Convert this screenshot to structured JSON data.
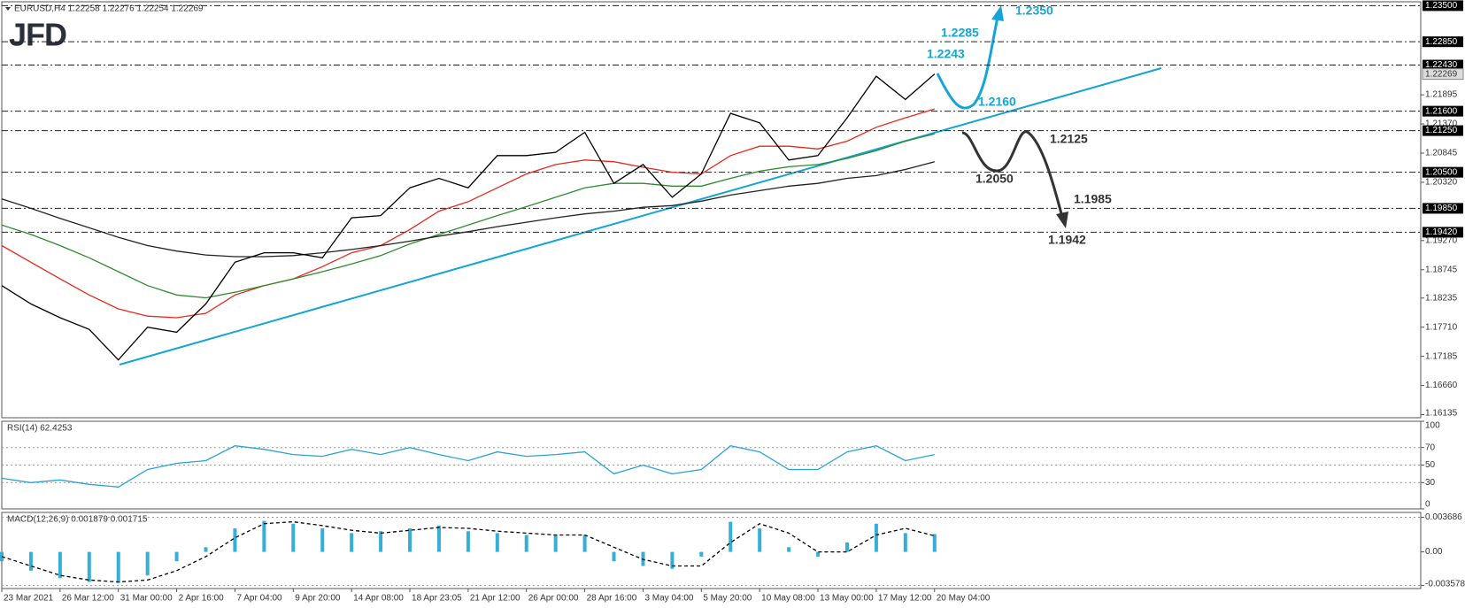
{
  "logo": "JFD",
  "chart_data": [
    {
      "type": "line",
      "title": "EURUSD,H4 1.22258 1.22276 1.22254 1.22269",
      "categories": [
        "23 Mar 2021",
        null,
        "26 Mar 12:00",
        null,
        "31 Mar 00:00",
        null,
        "2 Apr 16:00",
        null,
        "7 Apr 04:00",
        null,
        "9 Apr 20:00",
        null,
        "14 Apr 08:00",
        null,
        "18 Apr 23:05",
        null,
        "21 Apr 12:00",
        null,
        "26 Apr 00:00",
        null,
        "28 Apr 16:00",
        null,
        "3 May 04:00",
        null,
        "5 May 20:00",
        null,
        "10 May 08:00",
        null,
        "13 May 00:00",
        null,
        "17 May 12:00",
        null,
        "20 May 04:00"
      ],
      "series": [
        {
          "color": "#e8281e",
          "values": [
            1.1918,
            1.1888,
            1.1858,
            1.1829,
            1.1804,
            1.1791,
            1.1788,
            1.1796,
            1.1829,
            1.1846,
            1.1858,
            1.188,
            1.1905,
            1.1918,
            1.1947,
            1.198,
            1.1997,
            1.2022,
            1.2047,
            1.2064,
            1.2072,
            1.2069,
            1.2059,
            1.205,
            1.2047,
            1.208,
            1.2097,
            1.2097,
            1.2092,
            1.2106,
            1.2131,
            1.2148,
            1.2164
          ]
        },
        {
          "color": "#2e8b2e",
          "values": [
            1.1955,
            1.1938,
            1.1918,
            1.1896,
            1.1871,
            1.1846,
            1.1829,
            1.1824,
            1.1834,
            1.1846,
            1.1858,
            1.1871,
            1.1885,
            1.19,
            1.1921,
            1.1938,
            1.1955,
            1.1972,
            1.1988,
            1.2005,
            1.2022,
            1.203,
            1.203,
            1.2025,
            1.2025,
            1.2039,
            1.2052,
            1.206,
            1.2064,
            1.2075,
            1.2089,
            1.2106,
            1.2119
          ]
        },
        {
          "color": "#222222",
          "values": [
            1.2002,
            1.1985,
            1.1967,
            1.195,
            1.1933,
            1.1918,
            1.1908,
            1.1901,
            1.1898,
            1.1898,
            1.19,
            1.1905,
            1.1911,
            1.1918,
            1.1926,
            1.1935,
            1.1943,
            1.1952,
            1.196,
            1.1968,
            1.1975,
            1.198,
            1.1987,
            1.199,
            1.1998,
            1.2009,
            1.2017,
            1.2025,
            1.203,
            1.2039,
            1.2044,
            1.2055,
            1.2069
          ]
        },
        {
          "color": "#000000",
          "values": [
            1.1846,
            1.1813,
            1.1788,
            1.1767,
            1.1712,
            1.1771,
            1.1762,
            1.1813,
            1.1888,
            1.1905,
            1.1905,
            1.1896,
            1.1968,
            1.1972,
            1.2022,
            1.2039,
            1.2022,
            1.208,
            1.208,
            1.2086,
            1.2122,
            1.203,
            1.2064,
            1.2005,
            1.2047,
            1.2156,
            1.2139,
            1.2072,
            1.208,
            1.2148,
            1.2223,
            1.2181,
            1.2227
          ]
        }
      ],
      "ylim": [
        1.1608,
        1.2357
      ],
      "yticks": [
        1.21895,
        {
          "value": 1.2137,
          "label": "1.21370"
        },
        1.20845,
        {
          "value": 1.2032,
          "label": "1.20320"
        },
        {
          "value": 1.1927,
          "label": "1.19270"
        },
        1.18745,
        1.18235,
        {
          "value": 1.1771,
          "label": "1.17710"
        },
        1.17185,
        {
          "value": 1.1666,
          "label": "1.16660"
        },
        1.16135
      ],
      "levels": [
        {
          "value": 1.235,
          "label": "1.23500"
        },
        {
          "value": 1.2285,
          "label": "1.22850"
        },
        {
          "value": 1.2243,
          "label": "1.22430"
        },
        {
          "value": 1.216,
          "label": "1.21600"
        },
        {
          "value": 1.2125,
          "label": "1.21250"
        },
        {
          "value": 1.205,
          "label": "1.20500"
        },
        {
          "value": 1.1985,
          "label": "1.19850"
        },
        {
          "value": 1.1942,
          "label": "1.19420"
        }
      ],
      "last_price": 1.22269,
      "annotations": [
        "1.2350",
        "1.2285",
        "1.2243",
        "1.2160",
        "1.2125",
        "1.2050",
        "1.1985",
        "1.1942"
      ]
    },
    {
      "type": "line",
      "title": "RSI(14) 62.4253",
      "series": [
        {
          "color": "#2aa3d6",
          "values": [
            35,
            30,
            33,
            28,
            25,
            45,
            52,
            55,
            72,
            68,
            62,
            60,
            68,
            62,
            70,
            62,
            55,
            65,
            60,
            62,
            65,
            40,
            50,
            40,
            45,
            72,
            65,
            45,
            45,
            65,
            72,
            55,
            62
          ]
        }
      ],
      "ylim": [
        0,
        100
      ],
      "yticks": [
        0,
        30,
        50,
        70,
        100
      ]
    },
    {
      "type": "bar",
      "title": "MACD(12,26,9) 0.001879 0.001715",
      "series": [
        {
          "type": "bar",
          "color": "#37aed6",
          "values": [
            -0.001,
            -0.002,
            -0.0028,
            -0.0032,
            -0.0033,
            -0.0025,
            -0.001,
            0.0005,
            0.0025,
            0.0033,
            0.003,
            0.0025,
            0.002,
            0.0022,
            0.0025,
            0.0028,
            0.0022,
            0.002,
            0.0018,
            0.0018,
            0.0018,
            -0.001,
            -0.0015,
            -0.0018,
            -0.0005,
            0.0032,
            0.0025,
            0.0005,
            -0.0005,
            0.001,
            0.003,
            0.002,
            0.0019
          ]
        },
        {
          "type": "line",
          "color": "#000000",
          "dashed": true,
          "values": [
            -0.0005,
            -0.0015,
            -0.0025,
            -0.003,
            -0.0032,
            -0.003,
            -0.002,
            -0.0005,
            0.0015,
            0.003,
            0.0032,
            0.0028,
            0.0023,
            0.002,
            0.0023,
            0.0026,
            0.0025,
            0.0022,
            0.002,
            0.0018,
            0.0018,
            0.0005,
            -0.0008,
            -0.0015,
            -0.0015,
            0.001,
            0.003,
            0.002,
            0.0,
            0.0,
            0.0018,
            0.0025,
            0.0017
          ]
        }
      ],
      "ylim": [
        -0.0039,
        0.0042
      ],
      "yticks": [
        -0.003578,
        {
          "value": 0,
          "label": "0.00"
        },
        0.003686
      ]
    }
  ]
}
